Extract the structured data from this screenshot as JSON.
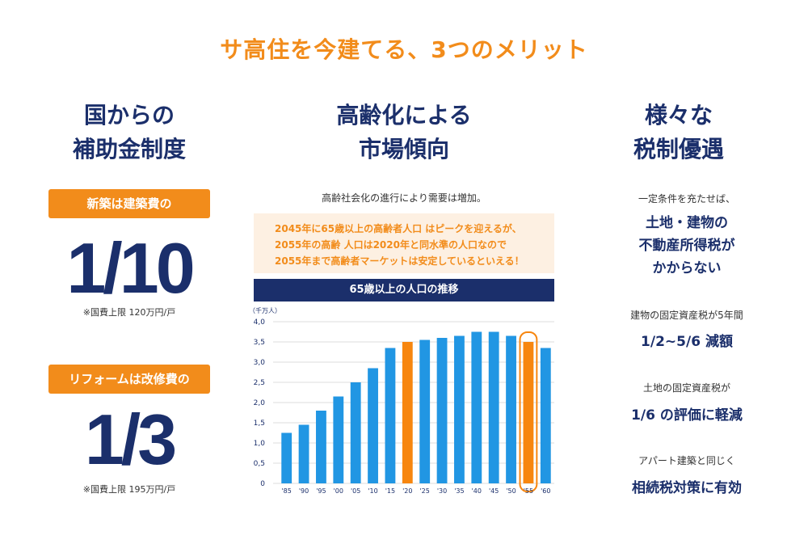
{
  "main_title": "サ高住を今建てる、3つのメリット",
  "left": {
    "title": "国からの\n補助金制度",
    "pill1": "新築は建築費の",
    "fraction1": "1/10",
    "note1": "※国費上限 120万円/戸",
    "pill2": "リフォームは改修費の",
    "fraction2": "1/3",
    "note2": "※国費上限 195万円/戸"
  },
  "middle": {
    "title": "高齢化による\n市場傾向",
    "subtitle": "高齢社会化の進行により需要は増加。",
    "highlight": "2045年に65歳以上の高齢者人口 はピークを迎えるが、\n2055年の高齢 人口は2020年と同水準の人口なので\n2055年まで高齢者マーケットは安定しているといえる！",
    "chart_title": "65歳以上の人口の推移"
  },
  "right": {
    "title": "様々な\n税制優遇",
    "sub1": "一定条件を充たせば、",
    "big1": "土地・建物の\n不動産所得税が\nかからない",
    "sub2": "建物の固定資産税が5年間",
    "big2": "1/2~5/6 減額",
    "sub3": "土地の固定資産税が",
    "big3": "1/6 の評価に軽減",
    "sub4": "アパート建築と同じく",
    "big4": "相続税対策に有効"
  },
  "chart_data": {
    "type": "bar",
    "unit_label": "（千万人）",
    "categories": [
      "'85",
      "'90",
      "'95",
      "'00",
      "'05",
      "'10",
      "'15",
      "'20",
      "'25",
      "'30",
      "'35",
      "'40",
      "'45",
      "'50",
      "'55",
      "'60"
    ],
    "values": [
      1.25,
      1.45,
      1.8,
      2.15,
      2.5,
      2.85,
      3.35,
      3.5,
      3.55,
      3.6,
      3.65,
      3.75,
      3.75,
      3.65,
      3.5,
      3.35
    ],
    "highlight": [
      "'20",
      "'55"
    ],
    "circled": "'55",
    "yticks": [
      "0",
      "0,5",
      "1,0",
      "1,5",
      "2,0",
      "2,5",
      "3,0",
      "3,5",
      "4,0"
    ],
    "ylim": [
      0,
      4.0
    ],
    "colors": {
      "bar": "#2196e3",
      "highlight": "#f7860f",
      "grid": "#dddddd"
    }
  }
}
